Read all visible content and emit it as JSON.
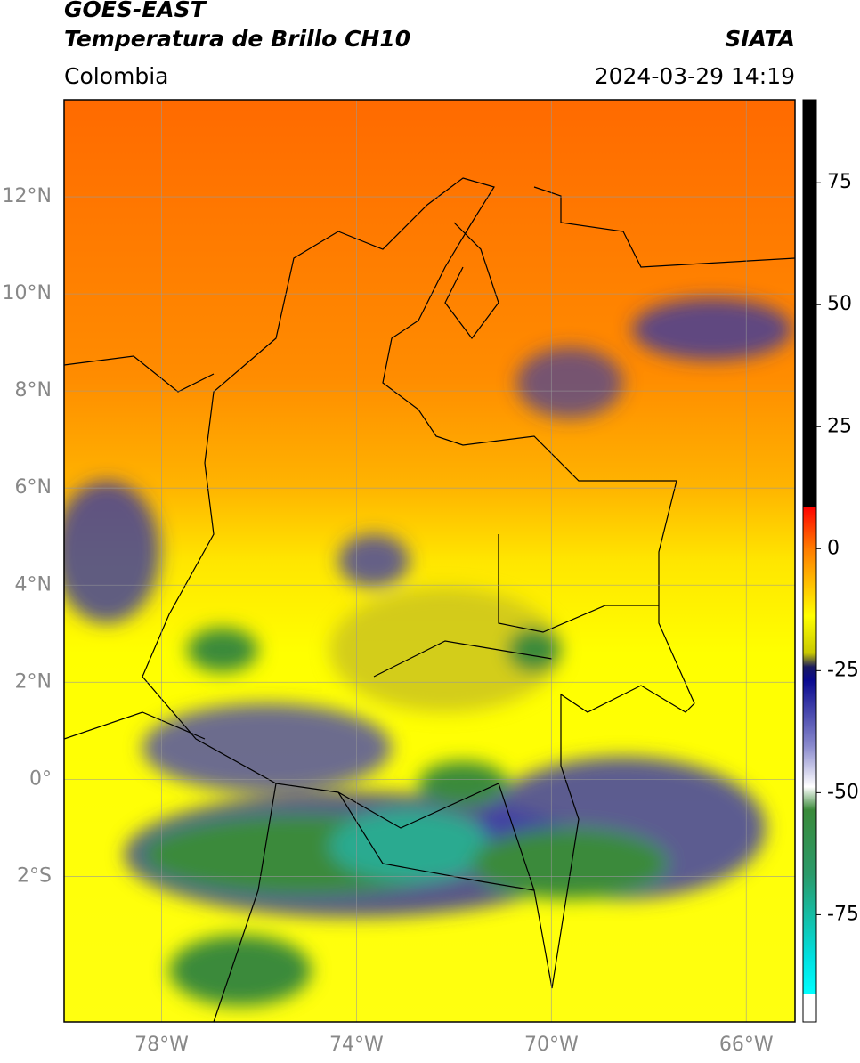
{
  "header": {
    "title": "GOES-EAST",
    "subtitle": "Temperatura de Brillo CH10",
    "source": "SIATA",
    "region": "Colombia",
    "datetime": "2024-03-29 14:19"
  },
  "map": {
    "xlim": [
      -80,
      -65
    ],
    "ylim": [
      -5,
      14
    ],
    "xticks": [
      {
        "value": -78,
        "label": "78°W"
      },
      {
        "value": -74,
        "label": "74°W"
      },
      {
        "value": -70,
        "label": "70°W"
      },
      {
        "value": -66,
        "label": "66°W"
      }
    ],
    "yticks": [
      {
        "value": 12,
        "label": "12°N"
      },
      {
        "value": 10,
        "label": "10°N"
      },
      {
        "value": 8,
        "label": "8°N"
      },
      {
        "value": 6,
        "label": "6°N"
      },
      {
        "value": 4,
        "label": "4°N"
      },
      {
        "value": 2,
        "label": "2°N"
      },
      {
        "value": 0,
        "label": "0°"
      },
      {
        "value": -2,
        "label": "2°S"
      }
    ]
  },
  "colorbar": {
    "range": [
      -97,
      92
    ],
    "ticks": [
      75,
      50,
      25,
      0,
      -25,
      -50,
      -75
    ]
  }
}
